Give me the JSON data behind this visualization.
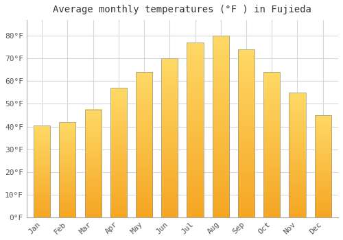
{
  "title": "Average monthly temperatures (°F ) in Fujieda",
  "months": [
    "Jan",
    "Feb",
    "Mar",
    "Apr",
    "May",
    "Jun",
    "Jul",
    "Aug",
    "Sep",
    "Oct",
    "Nov",
    "Dec"
  ],
  "values": [
    40.5,
    42,
    47.5,
    57,
    64,
    70,
    77,
    80,
    74,
    64,
    55,
    45
  ],
  "bar_color_bottom": "#F5A623",
  "bar_color_top": "#FFD966",
  "bar_edge_color": "#999999",
  "ylim": [
    0,
    87
  ],
  "yticks": [
    0,
    10,
    20,
    30,
    40,
    50,
    60,
    70,
    80
  ],
  "ytick_labels": [
    "0°F",
    "10°F",
    "20°F",
    "30°F",
    "40°F",
    "50°F",
    "60°F",
    "70°F",
    "80°F"
  ],
  "background_color": "#ffffff",
  "grid_color": "#d0d8e0",
  "title_fontsize": 10,
  "tick_fontsize": 8,
  "tick_color": "#555555"
}
